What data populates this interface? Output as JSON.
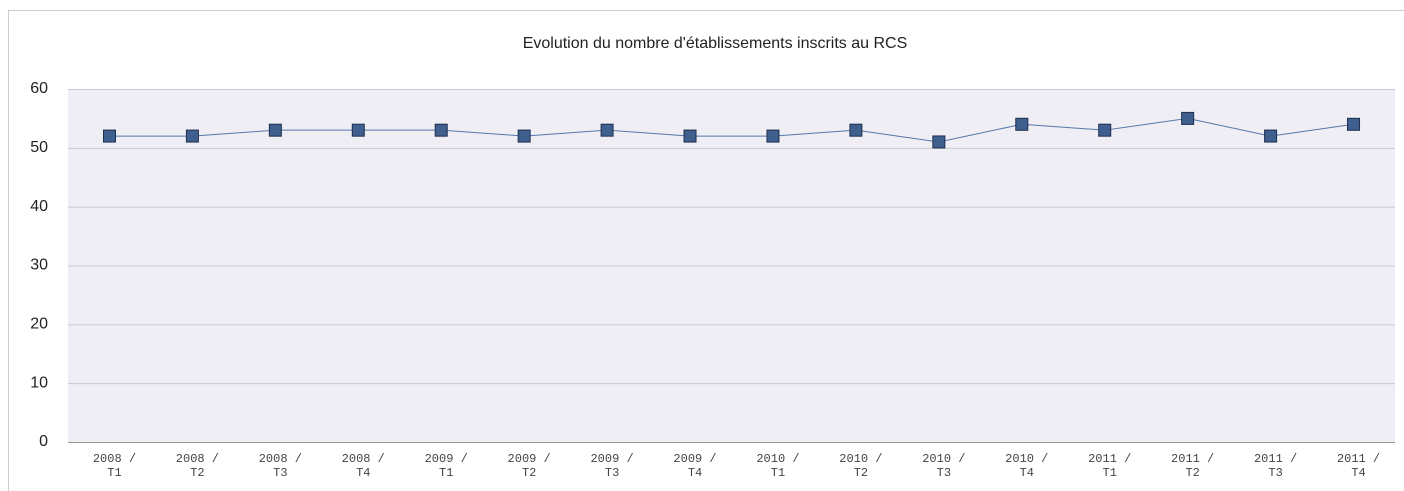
{
  "chart_data": {
    "type": "line",
    "title": "Evolution du nombre d'établissements inscrits au RCS",
    "categories": [
      "2008 / T1",
      "2008 / T2",
      "2008 / T3",
      "2008 / T4",
      "2009 / T1",
      "2009 / T2",
      "2009 / T3",
      "2009 / T4",
      "2010 / T1",
      "2010 / T2",
      "2010 / T3",
      "2010 / T4",
      "2011 / T1",
      "2011 / T2",
      "2011 / T3",
      "2011 / T4"
    ],
    "values": [
      52,
      52,
      53,
      53,
      53,
      52,
      53,
      52,
      52,
      53,
      51,
      54,
      53,
      55,
      52,
      54
    ],
    "color": "#3f5f8f",
    "ylim": [
      0,
      60
    ],
    "yticks": [
      0,
      10,
      20,
      30,
      40,
      50,
      60
    ],
    "grid": true
  }
}
